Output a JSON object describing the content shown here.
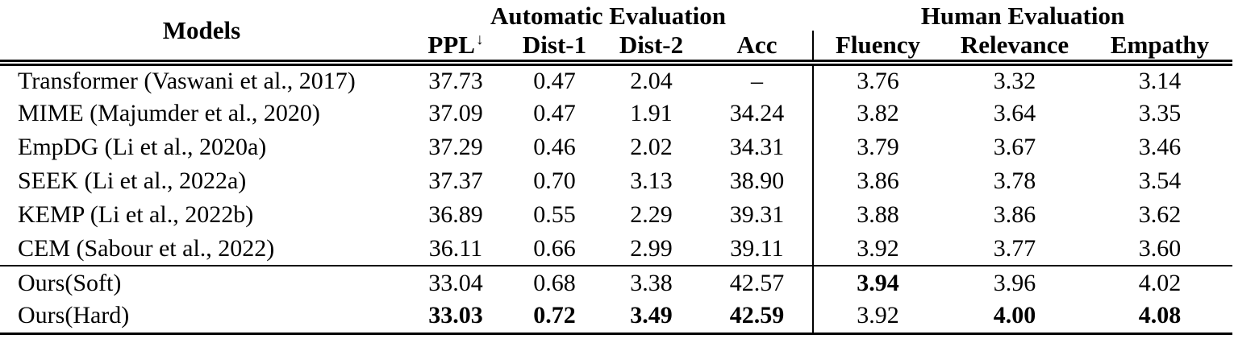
{
  "table": {
    "models_header": "Models",
    "group_automatic": "Automatic Evaluation",
    "group_human": "Human Evaluation",
    "ppl_arrow": "↓",
    "columns": [
      "PPL",
      "Dist-1",
      "Dist-2",
      "Acc",
      "Fluency",
      "Relevance",
      "Empathy"
    ],
    "baseline_rows": [
      {
        "model": "Transformer (Vaswani et al., 2017)",
        "cells": [
          {
            "v": "37.73"
          },
          {
            "v": "0.47"
          },
          {
            "v": "2.04"
          },
          {
            "v": "–"
          },
          {
            "v": "3.76"
          },
          {
            "v": "3.32"
          },
          {
            "v": "3.14"
          }
        ]
      },
      {
        "model": "MIME (Majumder et al., 2020)",
        "cells": [
          {
            "v": "37.09"
          },
          {
            "v": "0.47"
          },
          {
            "v": "1.91"
          },
          {
            "v": "34.24"
          },
          {
            "v": "3.82"
          },
          {
            "v": "3.64"
          },
          {
            "v": "3.35"
          }
        ]
      },
      {
        "model": "EmpDG (Li et al., 2020a)",
        "cells": [
          {
            "v": "37.29"
          },
          {
            "v": "0.46"
          },
          {
            "v": "2.02"
          },
          {
            "v": "34.31"
          },
          {
            "v": "3.79"
          },
          {
            "v": "3.67"
          },
          {
            "v": "3.46"
          }
        ]
      },
      {
        "model": "SEEK (Li et al., 2022a)",
        "cells": [
          {
            "v": "37.37"
          },
          {
            "v": "0.70"
          },
          {
            "v": "3.13"
          },
          {
            "v": "38.90"
          },
          {
            "v": "3.86"
          },
          {
            "v": "3.78"
          },
          {
            "v": "3.54"
          }
        ]
      },
      {
        "model": "KEMP (Li et al., 2022b)",
        "cells": [
          {
            "v": "36.89"
          },
          {
            "v": "0.55"
          },
          {
            "v": "2.29"
          },
          {
            "v": "39.31"
          },
          {
            "v": "3.88"
          },
          {
            "v": "3.86"
          },
          {
            "v": "3.62"
          }
        ]
      },
      {
        "model": "CEM (Sabour et al., 2022)",
        "cells": [
          {
            "v": "36.11"
          },
          {
            "v": "0.66"
          },
          {
            "v": "2.99"
          },
          {
            "v": "39.11"
          },
          {
            "v": "3.92"
          },
          {
            "v": "3.77"
          },
          {
            "v": "3.60"
          }
        ]
      }
    ],
    "ours_rows": [
      {
        "model": "Ours(Soft)",
        "cells": [
          {
            "v": "33.04"
          },
          {
            "v": "0.68"
          },
          {
            "v": "3.38"
          },
          {
            "v": "42.57"
          },
          {
            "v": "3.94",
            "bold": true
          },
          {
            "v": "3.96"
          },
          {
            "v": "4.02"
          }
        ]
      },
      {
        "model": "Ours(Hard)",
        "cells": [
          {
            "v": "33.03",
            "bold": true
          },
          {
            "v": "0.72",
            "bold": true
          },
          {
            "v": "3.49",
            "bold": true
          },
          {
            "v": "42.59",
            "bold": true
          },
          {
            "v": "3.92"
          },
          {
            "v": "4.00",
            "bold": true
          },
          {
            "v": "4.08",
            "bold": true
          }
        ]
      }
    ],
    "text_color": "#000000",
    "background_color": "#ffffff"
  }
}
